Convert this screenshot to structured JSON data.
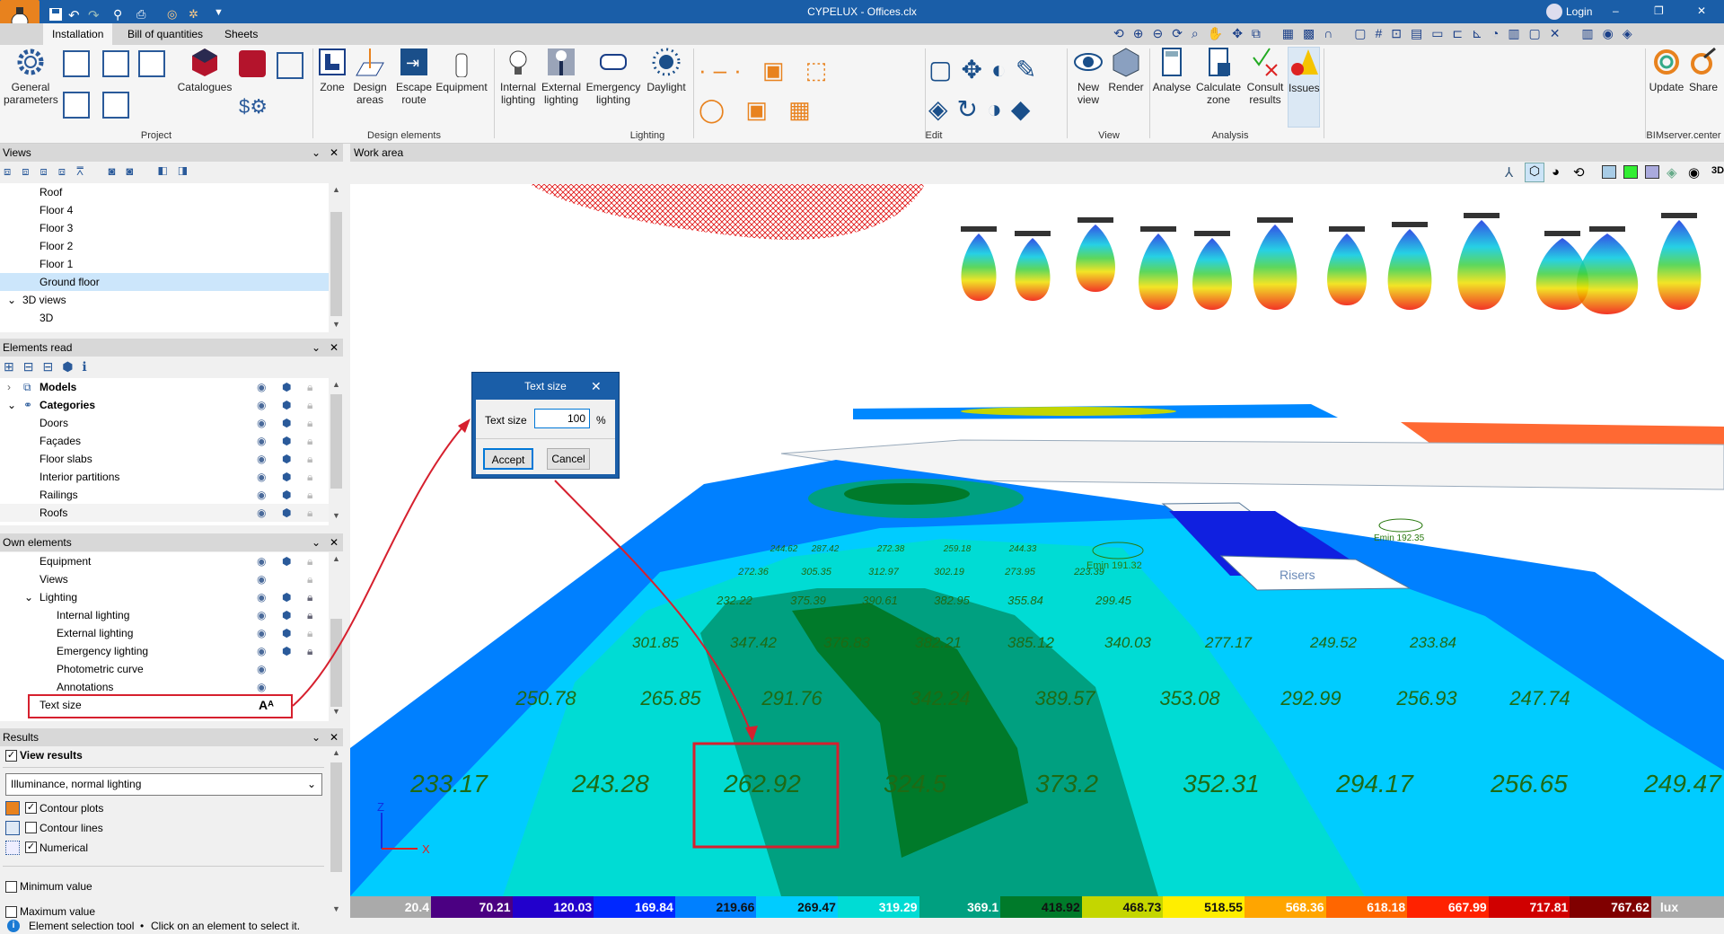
{
  "titlebar": {
    "title": "CYPELUX - Offices.clx",
    "login": "Login",
    "minimize": "–",
    "restore": "❐",
    "close": "✕"
  },
  "tabs": [
    "Installation",
    "Bill of quantities",
    "Sheets"
  ],
  "ribbon": {
    "buttons": {
      "general_parameters": "General parameters",
      "catalogues": "Catalogues",
      "zone": "Zone",
      "design_areas": "Design areas",
      "escape_route": "Escape route",
      "equipment": "Equipment",
      "internal_lighting": "Internal lighting",
      "external_lighting": "External lighting",
      "emergency_lighting": "Emergency lighting",
      "daylight": "Daylight",
      "new_view": "New view",
      "render": "Render",
      "analyse": "Analyse",
      "calculate_zone": "Calculate zone",
      "consult_results": "Consult results",
      "issues": "Issues",
      "update": "Update",
      "share": "Share"
    },
    "groups": {
      "project": "Project",
      "design_elements": "Design elements",
      "lighting": "Lighting",
      "edit": "Edit",
      "view": "View",
      "analysis": "Analysis",
      "bimserver": "BIMserver.center"
    }
  },
  "views_panel": {
    "title": "Views",
    "items": [
      "Roof",
      "Floor 4",
      "Floor 3",
      "Floor 2",
      "Floor 1",
      "Ground floor"
    ],
    "group": "3D views",
    "group_items": [
      "3D"
    ],
    "selected": "Ground floor"
  },
  "elements_read": {
    "title": "Elements read",
    "models": "Models",
    "categories": "Categories",
    "items": [
      "Doors",
      "Façades",
      "Floor slabs",
      "Interior partitions",
      "Railings",
      "Roofs"
    ]
  },
  "own_elements": {
    "title": "Own elements",
    "items": [
      "Equipment",
      "Views"
    ],
    "lighting": "Lighting",
    "lighting_items": [
      "Internal lighting",
      "External lighting",
      "Emergency lighting",
      "Photometric curve",
      "Annotations"
    ],
    "text_size": "Text size"
  },
  "results": {
    "title": "Results",
    "view_results": "View results",
    "view_results_checked": true,
    "selected_result": "Illuminance, normal lighting",
    "contour_plots": "Contour plots",
    "contour_plots_checked": true,
    "contour_lines": "Contour lines",
    "contour_lines_checked": false,
    "numerical": "Numerical",
    "numerical_checked": true,
    "minimum_value": "Minimum value",
    "maximum_value": "Maximum value"
  },
  "work_area": {
    "title": "Work area",
    "rows": [
      [
        "244.62",
        "287.42",
        "272.38",
        "259.18",
        "244.33"
      ],
      [
        "272.36",
        "305.35",
        "312.97",
        "302.19",
        "273.95",
        "223.39"
      ],
      [
        "232.22",
        "375.39",
        "390.61",
        "382.95",
        "355.84",
        "299.45"
      ],
      [
        "301.85",
        "347.42",
        "376.83",
        "382.21",
        "385.12",
        "340.03",
        "277.17",
        "249.52",
        "233.84"
      ],
      [
        "250.78",
        "265.85",
        "291.76",
        "342.24",
        "389.57",
        "353.08",
        "292.99",
        "256.93",
        "247.74"
      ],
      [
        "233.17",
        "243.28",
        "262.92",
        "324.5",
        "373.2",
        "352.31",
        "294.17",
        "256.65",
        "249.47"
      ]
    ],
    "emin_labels": [
      "Emin 191.32",
      "Emin 192.35"
    ],
    "room_label": "Risers",
    "axis_z": "Z",
    "axis_x": "X"
  },
  "legend": {
    "unit": "lux",
    "values": [
      "20.4",
      "70.21",
      "120.03",
      "169.84",
      "219.66",
      "269.47",
      "319.29",
      "369.1",
      "418.92",
      "468.73",
      "518.55",
      "568.36",
      "618.18",
      "667.99",
      "717.81",
      "767.62"
    ],
    "colors": [
      "#aaaaaa",
      "#4b0082",
      "#2200cc",
      "#0028ff",
      "#0080ff",
      "#00ccff",
      "#00dcd4",
      "#00a080",
      "#007a2a",
      "#c4d600",
      "#ffee00",
      "#ffa500",
      "#ff6600",
      "#ff2200",
      "#d00000",
      "#800000"
    ],
    "dark_text": [
      4,
      5,
      8,
      9,
      10
    ]
  },
  "dialog": {
    "title": "Text size",
    "label": "Text size",
    "value": "100",
    "unit": "%",
    "accept": "Accept",
    "cancel": "Cancel"
  },
  "status": {
    "tool": "Element selection tool",
    "hint": "Click on an element to select it."
  },
  "accent": "#1a5ea8",
  "highlight": "#d6202e"
}
